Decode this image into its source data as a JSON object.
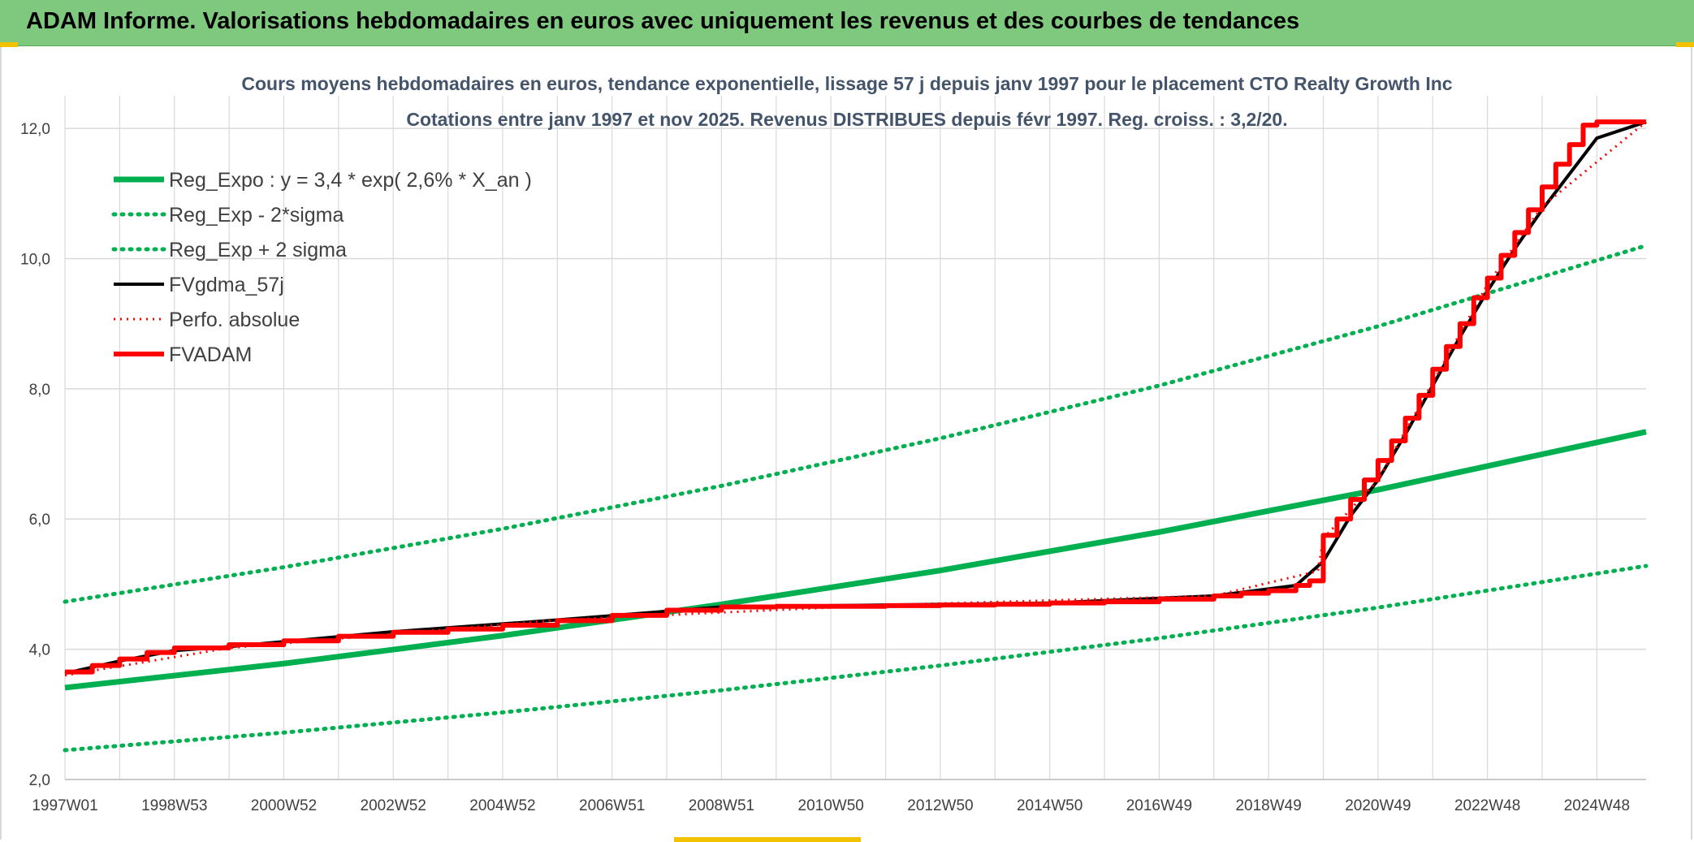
{
  "header": {
    "title": "ADAM Informe. Valorisations hebdomadaires en euros avec uniquement les revenus et des courbes de tendances"
  },
  "chart_data": {
    "type": "line",
    "title_lines": [
      "Cours moyens hebdomadaires en euros, tendance exponentielle, lissage 57 j depuis janv 1997 pour le placement CTO Realty Growth Inc",
      "Cotations entre janv 1997 et nov 2025. Revenus DISTRIBUES depuis févr 1997. Reg. croiss. : 3,2/20."
    ],
    "x_ticks": [
      "1997W01",
      "1998W53",
      "2000W52",
      "2002W52",
      "2004W52",
      "2006W51",
      "2008W51",
      "2010W50",
      "2012W50",
      "2014W50",
      "2016W49",
      "2018W49",
      "2020W49",
      "2022W48",
      "2024W48"
    ],
    "x_range": [
      1997.0,
      2025.9
    ],
    "y_ticks": [
      "2,0",
      "4,0",
      "6,0",
      "8,0",
      "10,0",
      "12,0"
    ],
    "ylim": [
      2,
      12.5
    ],
    "grid": true,
    "legend_position": "top-left",
    "colors": {
      "green": "#00b050",
      "black": "#000000",
      "red": "#ff0000",
      "grid": "#d9d9d9"
    },
    "series": [
      {
        "name": "Reg_Expo : y = 3,4 * exp( 2,6% *  X_an )",
        "style": "solid-green",
        "x": [
          1997.0,
          2001.0,
          2005.0,
          2009.0,
          2013.0,
          2017.0,
          2021.0,
          2025.9
        ],
        "y": [
          3.41,
          3.78,
          4.21,
          4.69,
          5.21,
          5.8,
          6.45,
          7.34
        ]
      },
      {
        "name": "Reg_Exp - 2*sigma",
        "style": "dotted-green",
        "x": [
          1997.0,
          2001.0,
          2005.0,
          2009.0,
          2013.0,
          2017.0,
          2021.0,
          2025.9
        ],
        "y": [
          2.45,
          2.72,
          3.03,
          3.37,
          3.75,
          4.17,
          4.64,
          5.28
        ]
      },
      {
        "name": "Reg_Exp + 2 sigma",
        "style": "dotted-green",
        "x": [
          1997.0,
          2001.0,
          2005.0,
          2009.0,
          2013.0,
          2017.0,
          2021.0,
          2025.9
        ],
        "y": [
          4.73,
          5.26,
          5.85,
          6.51,
          7.24,
          8.05,
          8.96,
          10.2
        ]
      },
      {
        "name": "FVgdma_57j",
        "style": "solid-black",
        "x": [
          1997.0,
          1998.0,
          1999.0,
          2000.0,
          2003.0,
          2006.0,
          2009.0,
          2012.0,
          2015.0,
          2018.0,
          2019.5,
          2020.0,
          2020.5,
          2021.0,
          2021.5,
          2022.0,
          2022.5,
          2023.0,
          2023.5,
          2024.0,
          2024.5,
          2025.0,
          2025.9
        ],
        "y": [
          3.63,
          3.82,
          3.98,
          4.04,
          4.27,
          4.45,
          4.65,
          4.68,
          4.71,
          4.82,
          4.98,
          5.35,
          6.05,
          6.6,
          7.3,
          8.05,
          8.8,
          9.5,
          10.15,
          10.75,
          11.3,
          11.85,
          12.1
        ]
      },
      {
        "name": "Perfo. absolue",
        "style": "dotted-red",
        "x": [
          1997.0,
          2000.0,
          2006.0,
          2012.0,
          2018.0,
          2019.9,
          2020.0,
          2021.0,
          2022.0,
          2023.0,
          2024.0,
          2025.9
        ],
        "y": [
          3.6,
          4.02,
          4.45,
          4.68,
          4.82,
          5.2,
          5.7,
          6.6,
          8.1,
          9.6,
          10.8,
          12.1
        ]
      },
      {
        "name": "FVADAM",
        "style": "step-red",
        "x": [
          1997.0,
          1997.5,
          1998.0,
          1998.5,
          1999.0,
          2000.0,
          2001.0,
          2002.0,
          2003.0,
          2004.0,
          2005.0,
          2006.0,
          2007.0,
          2008.0,
          2009.0,
          2010.0,
          2011.0,
          2012.0,
          2013.0,
          2014.0,
          2015.0,
          2016.0,
          2017.0,
          2018.0,
          2018.5,
          2019.0,
          2019.5,
          2019.75,
          2020.0,
          2020.25,
          2020.5,
          2020.75,
          2021.0,
          2021.25,
          2021.5,
          2021.75,
          2022.0,
          2022.25,
          2022.5,
          2022.75,
          2023.0,
          2023.25,
          2023.5,
          2023.75,
          2024.0,
          2024.25,
          2024.5,
          2024.75,
          2025.0,
          2025.25,
          2025.5,
          2025.9
        ],
        "y": [
          3.65,
          3.75,
          3.85,
          3.95,
          4.02,
          4.07,
          4.13,
          4.2,
          4.26,
          4.31,
          4.37,
          4.44,
          4.52,
          4.6,
          4.65,
          4.66,
          4.66,
          4.67,
          4.68,
          4.69,
          4.71,
          4.73,
          4.77,
          4.82,
          4.86,
          4.9,
          4.98,
          5.05,
          5.75,
          6.0,
          6.3,
          6.6,
          6.9,
          7.2,
          7.55,
          7.9,
          8.3,
          8.65,
          9.0,
          9.4,
          9.7,
          10.05,
          10.4,
          10.75,
          11.1,
          11.45,
          11.75,
          12.05,
          12.1,
          12.1,
          12.1,
          12.1
        ]
      }
    ]
  }
}
